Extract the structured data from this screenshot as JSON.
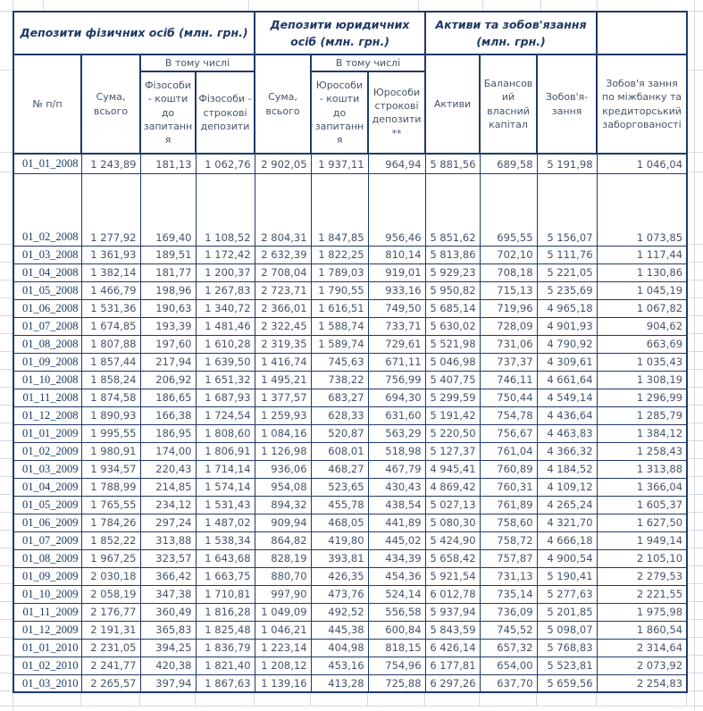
{
  "sheet": {
    "groups": [
      {
        "label": "Депозити фізичних осіб (млн. грн.)"
      },
      {
        "label": "Депозити юридичних осіб (млн. грн.)"
      },
      {
        "label": "Активи та зобов'язання (млн. грн.)"
      }
    ],
    "subheader": {
      "fiz": "В тому числі",
      "jur": "В тому числі"
    },
    "columns": {
      "num": "№ п/п",
      "fiz_total": "Сума, всього",
      "fiz_demand": "Фізособи - кошти до запитання",
      "fiz_term": "Фізособи - строкові депозити",
      "jur_total": "Сума, всього",
      "jur_demand": "Юрособи - кошти до запитання",
      "jur_term": "Юрособи строкові депозити**",
      "assets": "Активи",
      "capital": "Балансовий власний капітал",
      "liabilities": "Зобов'я-зання",
      "interbank": "Зобов'я зання по міжбанку та кредиторський заборгованості"
    },
    "rows": [
      [
        "01_01_2008",
        "1 243,89",
        "181,13",
        "1 062,76",
        "2 902,05",
        "1 937,11",
        "964,94",
        "5 881,56",
        "689,58",
        "5 191,98",
        "1 046,04"
      ],
      [
        "01_02_2008",
        "1 277,92",
        "169,40",
        "1 108,52",
        "2 804,31",
        "1 847,85",
        "956,46",
        "5 851,62",
        "695,55",
        "5 156,07",
        "1 073,85"
      ],
      [
        "01_03_2008",
        "1 361,93",
        "189,51",
        "1 172,42",
        "2 632,39",
        "1 822,25",
        "810,14",
        "5 813,86",
        "702,10",
        "5 111,76",
        "1 117,44"
      ],
      [
        "01_04_2008",
        "1 382,14",
        "181,77",
        "1 200,37",
        "2 708,04",
        "1 789,03",
        "919,01",
        "5 929,23",
        "708,18",
        "5 221,05",
        "1 130,86"
      ],
      [
        "01_05_2008",
        "1 466,79",
        "198,96",
        "1 267,83",
        "2 723,71",
        "1 790,55",
        "933,16",
        "5 950,82",
        "715,13",
        "5 235,69",
        "1 045,19"
      ],
      [
        "01_06_2008",
        "1 531,36",
        "190,63",
        "1 340,72",
        "2 366,01",
        "1 616,51",
        "749,50",
        "5 685,14",
        "719,96",
        "4 965,18",
        "1 067,82"
      ],
      [
        "01_07_2008",
        "1 674,85",
        "193,39",
        "1 481,46",
        "2 322,45",
        "1 588,74",
        "733,71",
        "5 630,02",
        "728,09",
        "4 901,93",
        "904,62"
      ],
      [
        "01_08_2008",
        "1 807,88",
        "197,60",
        "1 610,28",
        "2 319,35",
        "1 589,74",
        "729,61",
        "5 521,98",
        "731,06",
        "4 790,92",
        "663,69"
      ],
      [
        "01_09_2008",
        "1 857,44",
        "217,94",
        "1 639,50",
        "1 416,74",
        "745,63",
        "671,11",
        "5 046,98",
        "737,37",
        "4 309,61",
        "1 035,43"
      ],
      [
        "01_10_2008",
        "1 858,24",
        "206,92",
        "1 651,32",
        "1 495,21",
        "738,22",
        "756,99",
        "5 407,75",
        "746,11",
        "4 661,64",
        "1 308,19"
      ],
      [
        "01_11_2008",
        "1 874,58",
        "186,65",
        "1 687,93",
        "1 377,57",
        "683,27",
        "694,30",
        "5 299,59",
        "750,44",
        "4 549,14",
        "1 296,99"
      ],
      [
        "01_12_2008",
        "1 890,93",
        "166,38",
        "1 724,54",
        "1 259,93",
        "628,33",
        "631,60",
        "5 191,42",
        "754,78",
        "4 436,64",
        "1 285,79"
      ],
      [
        "01_01_2009",
        "1 995,55",
        "186,95",
        "1 808,60",
        "1 084,16",
        "520,87",
        "563,29",
        "5 220,50",
        "756,67",
        "4 463,83",
        "1 384,12"
      ],
      [
        "01_02_2009",
        "1 980,91",
        "174,00",
        "1 806,91",
        "1 126,98",
        "608,01",
        "518,98",
        "5 127,37",
        "761,04",
        "4 366,32",
        "1 258,43"
      ],
      [
        "01_03_2009",
        "1 934,57",
        "220,43",
        "1 714,14",
        "936,06",
        "468,27",
        "467,79",
        "4 945,41",
        "760,89",
        "4 184,52",
        "1 313,88"
      ],
      [
        "01_04_2009",
        "1 788,99",
        "214,85",
        "1 574,14",
        "954,08",
        "523,65",
        "430,43",
        "4 869,42",
        "760,31",
        "4 109,12",
        "1 366,04"
      ],
      [
        "01_05_2009",
        "1 765,55",
        "234,12",
        "1 531,43",
        "894,32",
        "455,78",
        "438,54",
        "5 027,13",
        "761,89",
        "4 265,24",
        "1 605,37"
      ],
      [
        "01_06_2009",
        "1 784,26",
        "297,24",
        "1 487,02",
        "909,94",
        "468,05",
        "441,89",
        "5 080,30",
        "758,60",
        "4 321,70",
        "1 627,50"
      ],
      [
        "01_07_2009",
        "1 852,22",
        "313,88",
        "1 538,34",
        "864,82",
        "419,80",
        "445,02",
        "5 424,90",
        "758,72",
        "4 666,18",
        "1 949,14"
      ],
      [
        "01_08_2009",
        "1 967,25",
        "323,57",
        "1 643,68",
        "828,19",
        "393,81",
        "434,39",
        "5 658,42",
        "757,87",
        "4 900,54",
        "2 105,10"
      ],
      [
        "01_09_2009",
        "2 030,18",
        "366,42",
        "1 663,75",
        "880,70",
        "426,35",
        "454,36",
        "5 921,54",
        "731,13",
        "5 190,41",
        "2 279,53"
      ],
      [
        "01_10_2009",
        "2 058,19",
        "347,38",
        "1 710,81",
        "997,90",
        "473,76",
        "524,14",
        "6 012,78",
        "735,14",
        "5 277,63",
        "2 221,55"
      ],
      [
        "01_11_2009",
        "2 176,77",
        "360,49",
        "1 816,28",
        "1 049,09",
        "492,52",
        "556,58",
        "5 937,94",
        "736,09",
        "5 201,85",
        "1 975,98"
      ],
      [
        "01_12_2009",
        "2 191,31",
        "365,83",
        "1 825,48",
        "1 046,21",
        "445,38",
        "600,84",
        "5 843,59",
        "745,52",
        "5 098,07",
        "1 860,54"
      ],
      [
        "01_01_2010",
        "2 231,05",
        "394,25",
        "1 836,79",
        "1 223,14",
        "404,98",
        "818,15",
        "6 426,14",
        "657,32",
        "5 768,83",
        "2 314,64"
      ],
      [
        "01_02_2010",
        "2 241,77",
        "420,38",
        "1 821,40",
        "1 208,12",
        "453,16",
        "754,96",
        "6 177,81",
        "654,00",
        "5 523,81",
        "2 073,92"
      ],
      [
        "01_03_2010",
        "2 265,57",
        "397,94",
        "1 867,63",
        "1 139,16",
        "413,28",
        "725,88",
        "6 297,26",
        "637,70",
        "5 659,56",
        "2 254,83"
      ]
    ],
    "colors": {
      "table_border": "#1f3a68",
      "group_title_text": "#1f3864",
      "header_text": "#44546a",
      "value_text": "#44546a",
      "date_text": "#17365d",
      "gridline": "#d4dae6"
    }
  }
}
